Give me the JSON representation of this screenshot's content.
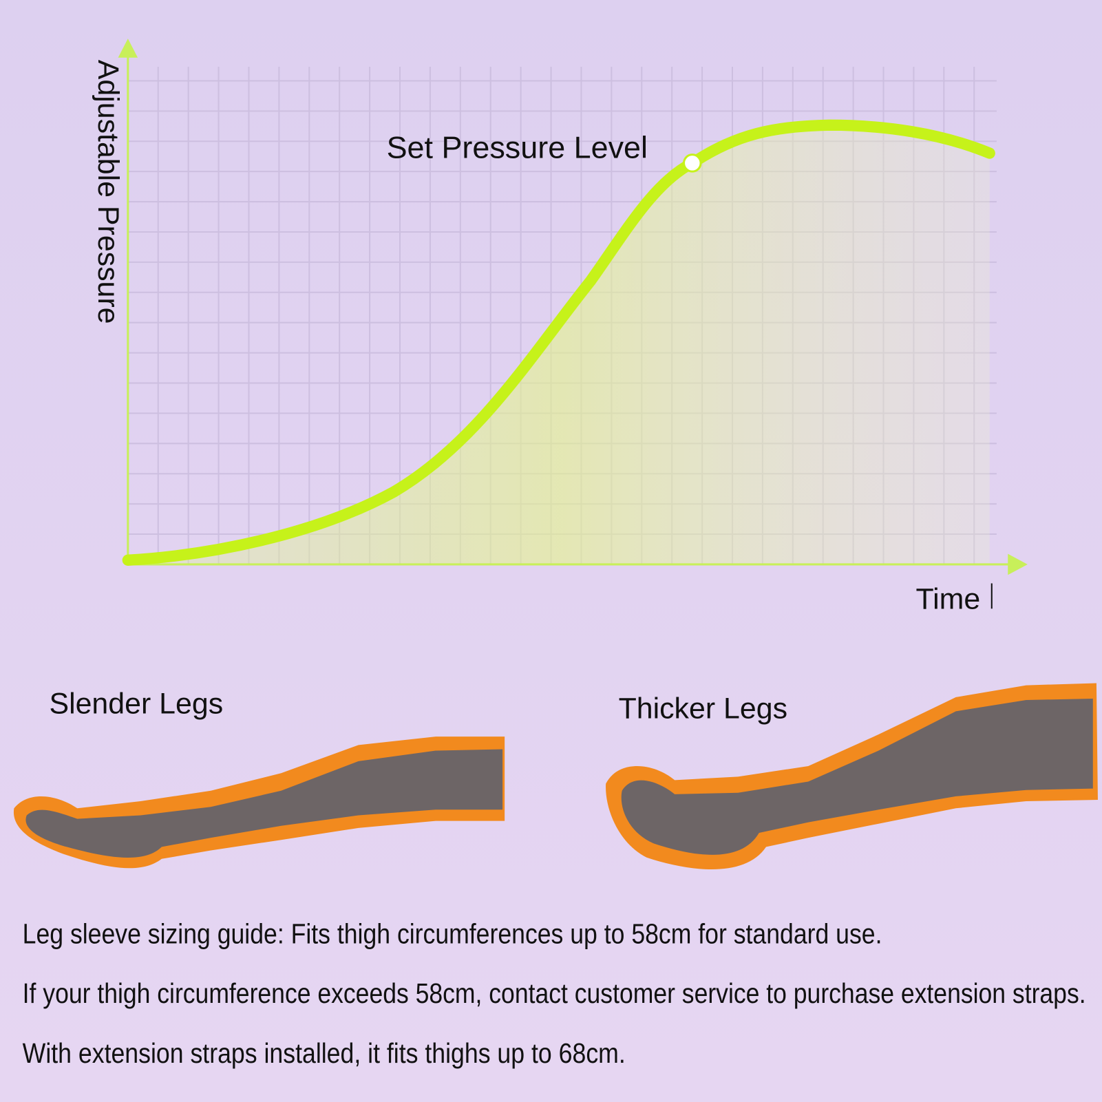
{
  "diagram": {
    "y_axis_label": "Adjustable Pressure",
    "annotation": "Set Pressure Level",
    "x_axis_label": "Time"
  },
  "legs": {
    "slender": "Slender Legs",
    "thicker": "Thicker Legs"
  },
  "notes": [
    "Leg sleeve sizing guide: Fits thigh circumferences up to 58cm for standard use.",
    "If your thigh circumference exceeds 58cm, contact customer service to purchase extension straps.",
    "With extension straps installed, it fits thighs up to 68cm."
  ]
}
